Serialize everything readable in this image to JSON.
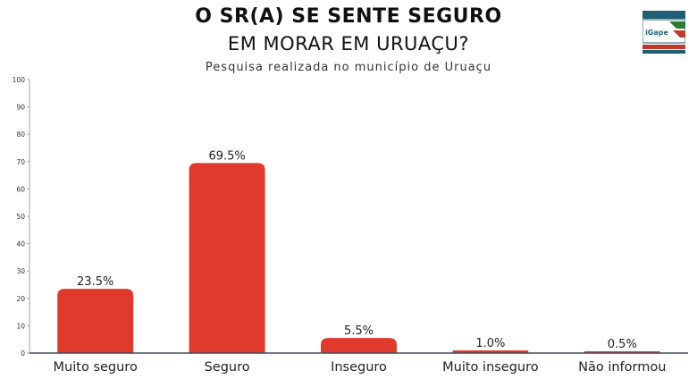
{
  "header": {
    "title_line1": "O SR(A) SE SENTE SEGURO",
    "title_line2": "EM MORAR EM URUAÇU?",
    "subtitle": "Pesquisa realizada no município de Uruaçu"
  },
  "logo": {
    "text": "iGape",
    "colors": [
      "#1f5f73",
      "#c0392b",
      "#2e7d32"
    ]
  },
  "colors": {
    "bar": "#e03a2c",
    "axis": "#3c4c5c",
    "tick_text": "#333333",
    "value_text": "#222222"
  },
  "chart_data": {
    "type": "bar",
    "categories": [
      "Muito seguro",
      "Seguro",
      "Inseguro",
      "Muito inseguro",
      "Não informou"
    ],
    "values": [
      23.5,
      69.5,
      5.5,
      1.0,
      0.5
    ],
    "value_labels": [
      "23.5%",
      "69.5%",
      "5.5%",
      "1.0%",
      "0.5%"
    ],
    "ylim": [
      0,
      100
    ],
    "yticks": [
      0,
      10,
      20,
      30,
      40,
      50,
      60,
      70,
      80,
      90,
      100
    ],
    "grid": false,
    "legend": "none"
  }
}
